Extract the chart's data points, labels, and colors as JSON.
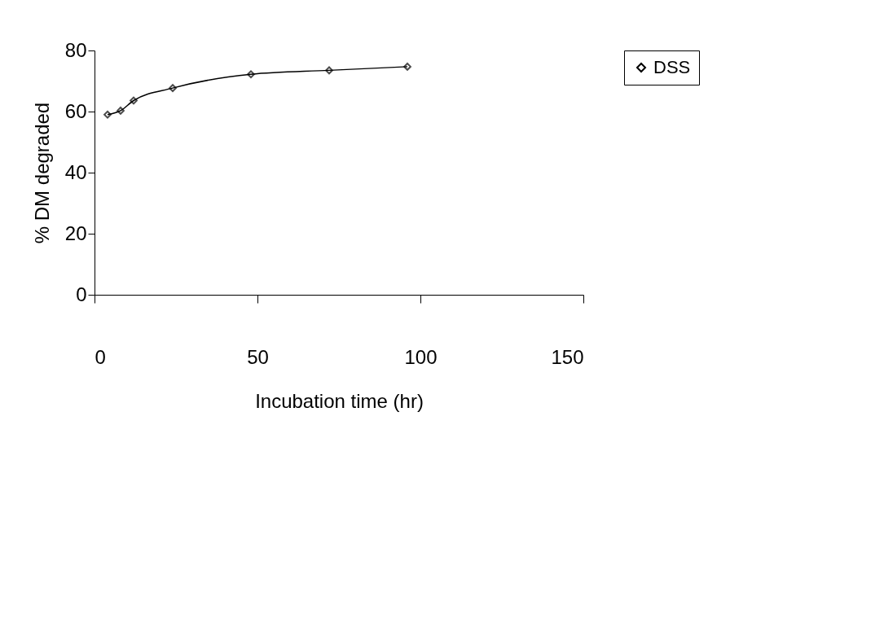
{
  "chart_data": {
    "type": "line",
    "xlabel": "Incubation time (hr)",
    "ylabel": "% DM degraded",
    "x": [
      4,
      8,
      12,
      24,
      48,
      72,
      96
    ],
    "series": [
      {
        "name": "DSS",
        "color": "#000000",
        "values": [
          59.0,
          60.3,
          63.6,
          67.7,
          72.2,
          73.5,
          74.7
        ]
      }
    ],
    "xlim": [
      0,
      150
    ],
    "xticks": [
      0,
      50,
      100,
      150
    ],
    "ylim": [
      0,
      80
    ],
    "yticks": [
      0,
      20,
      40,
      60,
      80
    ],
    "grid": false,
    "legend": "right",
    "marker": "diamond",
    "line_style": "solid"
  }
}
